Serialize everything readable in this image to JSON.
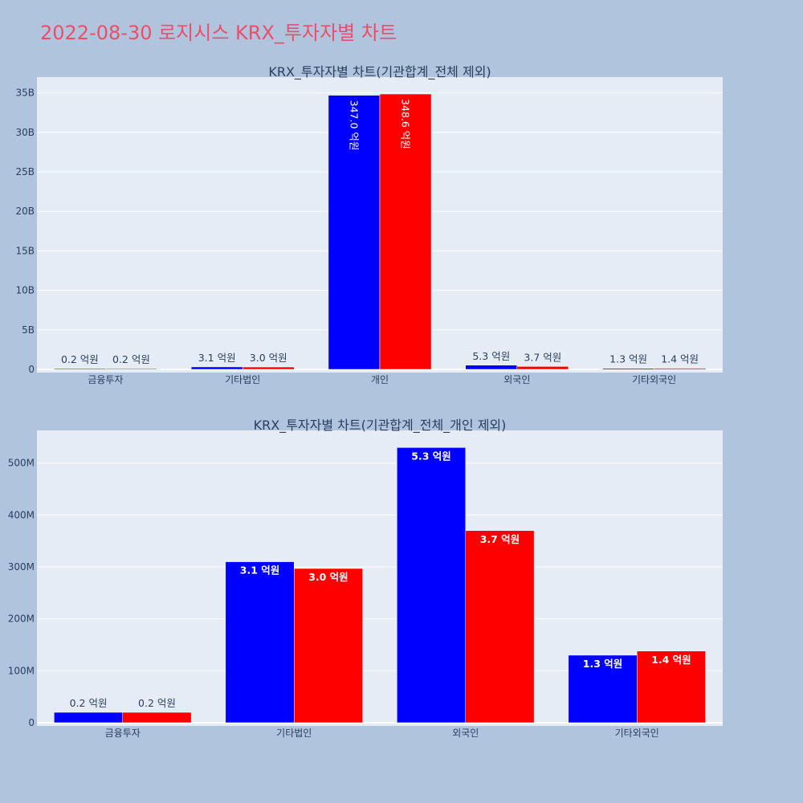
{
  "page_title": "2022-08-30 로지시스 KRX_투자자별 차트",
  "colors": {
    "page_bg": "#b0c4de",
    "plot_bg": "#e5ecf6",
    "title": "#e8506a",
    "text": "#2a3f5f",
    "grid": "#ffffff",
    "buy": "#0000ff",
    "sell": "#ff0000"
  },
  "chart_data": [
    {
      "type": "bar",
      "title": "KRX_투자자별 차트(기관합계_전체 제외)",
      "categories": [
        "금융투자",
        "기타법인",
        "개인",
        "외국인",
        "기타외국인"
      ],
      "series": [
        {
          "color": "#0000ff",
          "values": [
            20000000,
            310000000,
            34700000000,
            530000000,
            130000000
          ],
          "labels": [
            "0.2 억원",
            "3.1 억원",
            "347.0 억원",
            "5.3 억원",
            "1.3 억원"
          ]
        },
        {
          "color": "#ff0000",
          "values": [
            20000000,
            300000000,
            34860000000,
            370000000,
            140000000
          ],
          "labels": [
            "0.2 억원",
            "3.0 억원",
            "348.6 억원",
            "3.7 억원",
            "1.4 억원"
          ]
        }
      ],
      "ylim": [
        0,
        37000000000
      ],
      "yticks": [
        0,
        5000000000,
        10000000000,
        15000000000,
        20000000000,
        25000000000,
        30000000000,
        35000000000
      ],
      "ytick_labels": [
        "0",
        "5B",
        "10B",
        "15B",
        "20B",
        "25B",
        "30B",
        "35B"
      ],
      "xlabel": "",
      "ylabel": "",
      "grid": true,
      "legend": false
    },
    {
      "type": "bar",
      "title": "KRX_투자자별 차트(기관합계_전체_개인 제외)",
      "categories": [
        "금융투자",
        "기타법인",
        "외국인",
        "기타외국인"
      ],
      "series": [
        {
          "color": "#0000ff",
          "values": [
            20000000,
            310000000,
            530000000,
            130000000
          ],
          "labels": [
            "0.2 억원",
            "3.1 억원",
            "5.3 억원",
            "1.3 억원"
          ]
        },
        {
          "color": "#ff0000",
          "values": [
            20000000,
            297000000,
            370000000,
            138000000
          ],
          "labels": [
            "0.2 억원",
            "3.0 억원",
            "3.7 억원",
            "1.4 억원"
          ]
        }
      ],
      "ylim": [
        0,
        563000000
      ],
      "yticks": [
        0,
        100000000,
        200000000,
        300000000,
        400000000,
        500000000
      ],
      "ytick_labels": [
        "0",
        "100M",
        "200M",
        "300M",
        "400M",
        "500M"
      ],
      "xlabel": "",
      "ylabel": "",
      "grid": true,
      "legend": false
    }
  ]
}
